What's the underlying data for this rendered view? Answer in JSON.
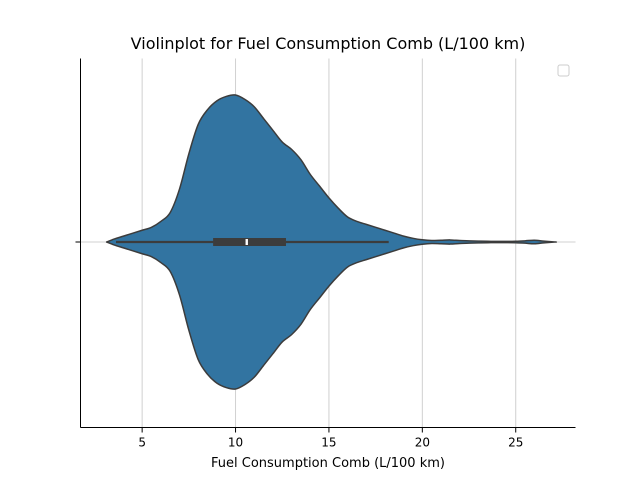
{
  "chart_data": {
    "type": "violin",
    "orientation": "horizontal",
    "title": "Violinplot for Fuel Consumption Comb (L/100 km)",
    "xlabel": "Fuel Consumption Comb (L/100 km)",
    "ylabel": "",
    "xlim": [
      1.7,
      28.2
    ],
    "xticks": [
      5,
      10,
      15,
      20,
      25
    ],
    "grid": true,
    "legend": {
      "placement": "top-right",
      "entries": []
    },
    "colors": {
      "violin_fill": "#3274a1",
      "edge": "#3c3c3c",
      "grid": "#d0d0d0",
      "median": "#ffffff"
    },
    "series": [
      {
        "density_x": [
          3.1,
          3.5,
          4.0,
          4.5,
          5.0,
          5.5,
          6.0,
          6.5,
          7.0,
          7.5,
          8.0,
          8.5,
          9.0,
          9.5,
          10.0,
          10.5,
          11.0,
          11.5,
          12.0,
          12.5,
          13.0,
          13.5,
          14.0,
          14.5,
          15.0,
          15.5,
          16.0,
          16.5,
          17.0,
          17.5,
          18.0,
          18.5,
          19.0,
          19.5,
          20.0,
          20.5,
          21.0,
          21.5,
          22.0,
          22.5,
          23.0,
          23.5,
          24.0,
          24.5,
          25.0,
          25.5,
          26.0,
          26.5,
          27.1
        ],
        "density": [
          0.0,
          0.02,
          0.04,
          0.06,
          0.08,
          0.1,
          0.14,
          0.2,
          0.36,
          0.6,
          0.8,
          0.9,
          0.96,
          0.99,
          1.0,
          0.97,
          0.92,
          0.84,
          0.76,
          0.68,
          0.63,
          0.56,
          0.46,
          0.38,
          0.3,
          0.23,
          0.17,
          0.14,
          0.12,
          0.1,
          0.08,
          0.06,
          0.04,
          0.025,
          0.015,
          0.01,
          0.012,
          0.014,
          0.01,
          0.008,
          0.006,
          0.005,
          0.004,
          0.004,
          0.005,
          0.008,
          0.012,
          0.006,
          0.0
        ],
        "box": {
          "q1": 8.8,
          "median": 10.6,
          "q3": 12.7,
          "whisker_low": 3.6,
          "whisker_high": 18.2
        }
      }
    ]
  }
}
